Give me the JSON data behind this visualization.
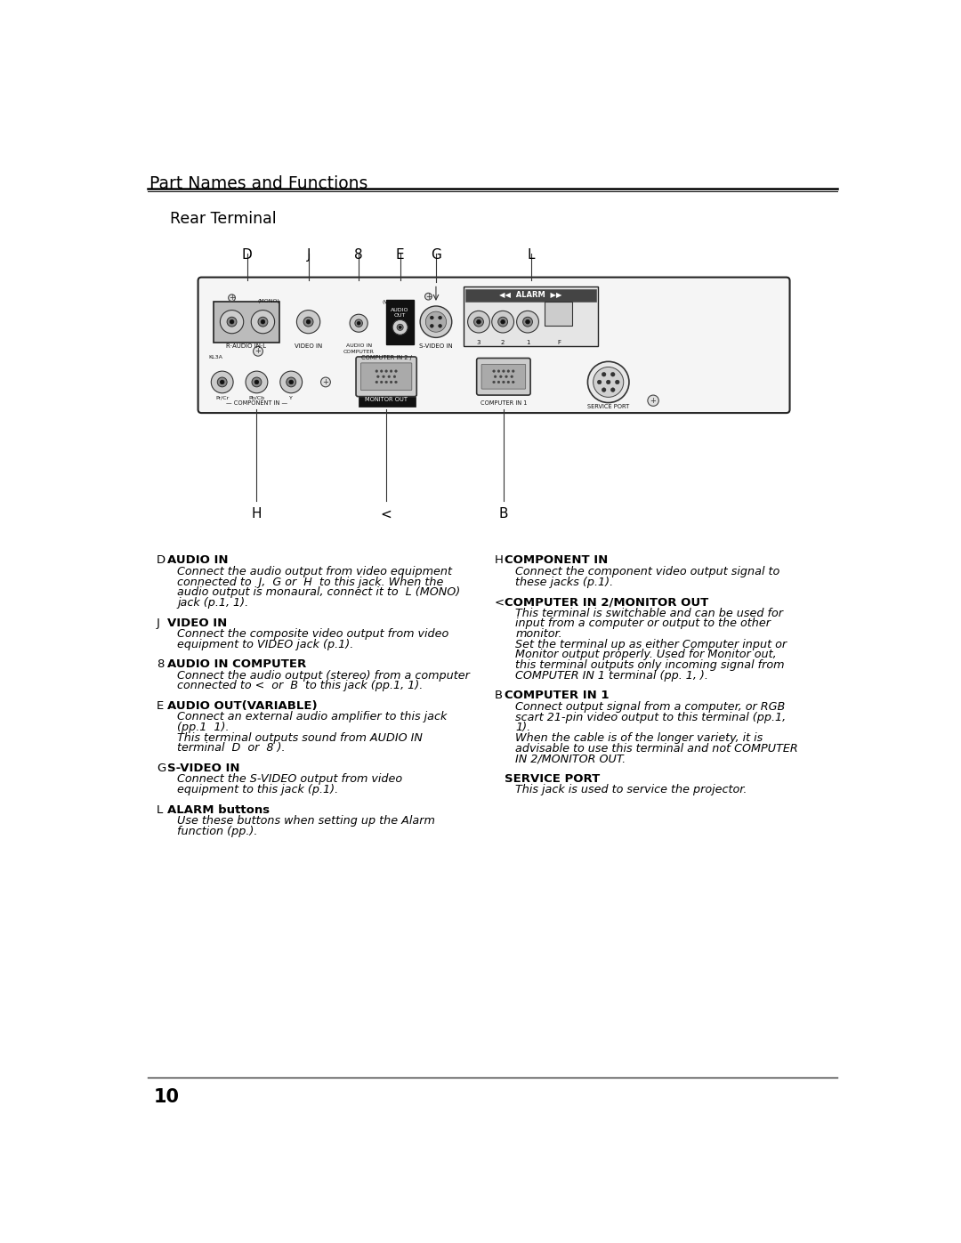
{
  "page_title": "Part Names and Functions",
  "section_title": "Rear Terminal",
  "page_number": "10",
  "bg_color": "#ffffff",
  "entries_left": [
    {
      "key": "D",
      "heading": "AUDIO IN",
      "body": [
        "Connect the audio output from video equipment",
        "connected to  J,  G or  H  to this jack. When the",
        "audio output is monaural, connect it to  L (MONO)",
        "jack (p.1, 1)."
      ]
    },
    {
      "key": "J",
      "heading": "VIDEO IN",
      "body": [
        "Connect the composite video output from video",
        "equipment to VIDEO jack (p.1)."
      ]
    },
    {
      "key": "8",
      "heading": "AUDIO IN COMPUTER",
      "body": [
        "Connect the audio output (stereo) from a computer",
        "connected to <  or  B  to this jack (pp.1, 1)."
      ]
    },
    {
      "key": "E",
      "heading": "AUDIO OUT(VARIABLE)",
      "body": [
        "Connect an external audio amplifier to this jack",
        "(pp.1  1).",
        "This terminal outputs sound from AUDIO IN",
        "terminal  D  or  8 )."
      ]
    },
    {
      "key": "G",
      "heading": "S-VIDEO IN",
      "body": [
        "Connect the S-VIDEO output from video",
        "equipment to this jack (p.1)."
      ]
    },
    {
      "key": "L",
      "heading": "ALARM buttons",
      "body": [
        "Use these buttons when setting up the Alarm",
        "function (pp.)."
      ]
    }
  ],
  "entries_right": [
    {
      "key": "H",
      "heading": "COMPONENT IN",
      "body": [
        "Connect the component video output signal to",
        "these jacks (p.1)."
      ]
    },
    {
      "key": "<",
      "heading": "COMPUTER IN 2/MONITOR OUT",
      "body": [
        "This terminal is switchable and can be used for",
        "input from a computer or output to the other",
        "monitor.",
        "Set the terminal up as either Computer input or",
        "Monitor output properly. Used for Monitor out,",
        "this terminal outputs only incoming signal from",
        "COMPUTER IN 1 terminal (pp. 1, )."
      ]
    },
    {
      "key": "B",
      "heading": "COMPUTER IN 1",
      "body": [
        "Connect output signal from a computer, or RGB",
        "scart 21-pin video output to this terminal (pp.1,",
        "1).",
        "When the cable is of the longer variety, it is",
        "advisable to use this terminal and not COMPUTER",
        "IN 2/MONITOR OUT."
      ]
    },
    {
      "key": "",
      "heading": "SERVICE PORT",
      "body": [
        "This jack is used to service the projector."
      ]
    }
  ]
}
